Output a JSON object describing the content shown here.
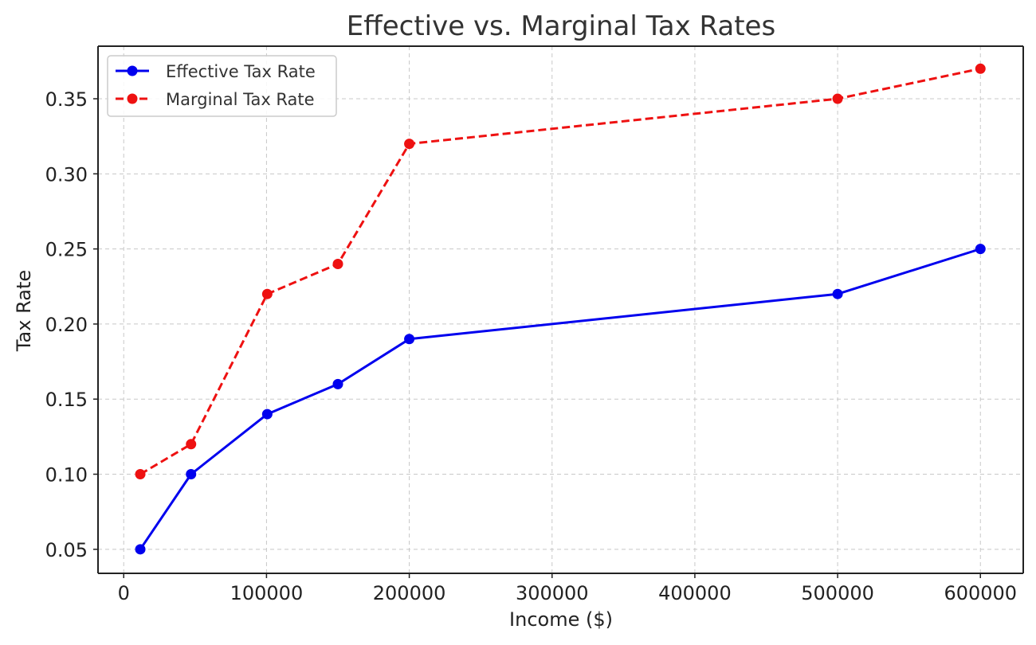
{
  "chart_data": {
    "type": "line",
    "title": "Effective vs. Marginal Tax Rates",
    "xlabel": "Income ($)",
    "ylabel": "Tax Rate",
    "xlim": [
      -18000,
      630000
    ],
    "ylim": [
      0.034,
      0.385
    ],
    "xticks": [
      0,
      100000,
      200000,
      300000,
      400000,
      500000,
      600000
    ],
    "xtick_labels": [
      "0",
      "100000",
      "200000",
      "300000",
      "400000",
      "500000",
      "600000"
    ],
    "yticks": [
      0.05,
      0.1,
      0.15,
      0.2,
      0.25,
      0.3,
      0.35
    ],
    "ytick_labels": [
      "0.05",
      "0.10",
      "0.15",
      "0.20",
      "0.25",
      "0.30",
      "0.35"
    ],
    "grid": true,
    "legend_position": "top-left",
    "x": [
      11600,
      47150,
      100525,
      150000,
      200000,
      500000,
      600000
    ],
    "series": [
      {
        "name": "Effective Tax Rate",
        "values": [
          0.05,
          0.1,
          0.14,
          0.16,
          0.19,
          0.22,
          0.25
        ],
        "color": "#0000ee",
        "line_style": "solid",
        "marker": "circle"
      },
      {
        "name": "Marginal Tax Rate",
        "values": [
          0.1,
          0.12,
          0.22,
          0.24,
          0.32,
          0.35,
          0.37
        ],
        "color": "#ee1111",
        "line_style": "dashed",
        "marker": "circle"
      }
    ]
  }
}
